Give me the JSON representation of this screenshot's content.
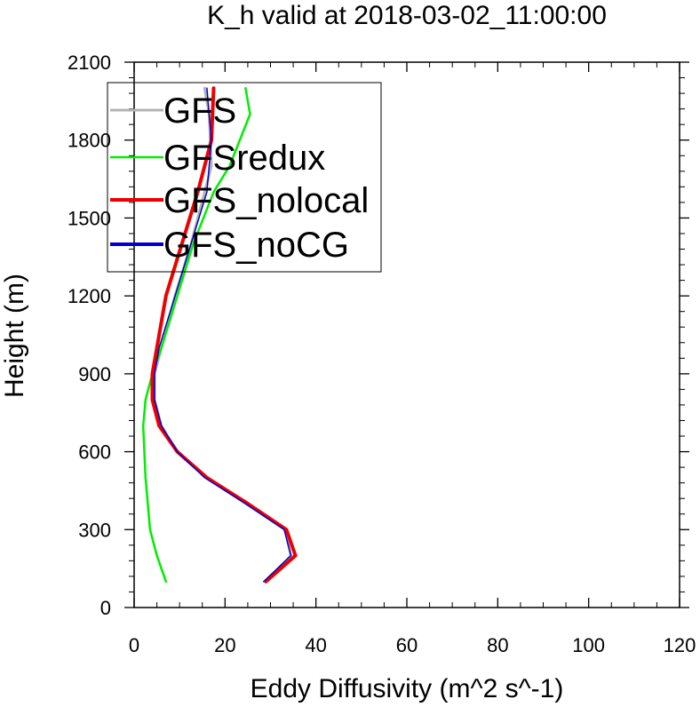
{
  "chart_data": {
    "type": "line",
    "title": "K_h valid at 2018-03-02_11:00:00",
    "xlabel": "Eddy Diffusivity (m^2 s^-1)",
    "ylabel": "Height (m)",
    "xlim": [
      0,
      120
    ],
    "ylim": [
      0,
      2100
    ],
    "xticks": [
      0,
      20,
      40,
      60,
      80,
      100,
      120
    ],
    "yticks": [
      0,
      300,
      600,
      900,
      1200,
      1500,
      1800,
      2100
    ],
    "xtick_labels": [
      "0",
      "20",
      "40",
      "60",
      "80",
      "100",
      "120"
    ],
    "ytick_labels": [
      "0",
      "300",
      "600",
      "900",
      "1200",
      "1500",
      "1800",
      "2100"
    ],
    "grid": false,
    "legend_position": "top-left",
    "series": [
      {
        "name": "GFS",
        "color": "#b4b4b4",
        "x": [
          29,
          34.5,
          33.2,
          24.5,
          16,
          9.5,
          6,
          4.5,
          4.5,
          6,
          9,
          12.5,
          17,
          16.5,
          15.5
        ],
        "y": [
          100,
          200,
          300,
          400,
          500,
          600,
          700,
          800,
          900,
          1000,
          1200,
          1400,
          1700,
          1900,
          2000
        ]
      },
      {
        "name": "GFSredux",
        "color": "#00ee00",
        "x": [
          7,
          5,
          3.5,
          2.5,
          2,
          2.5,
          4,
          6,
          9.5,
          13,
          17.5,
          21,
          25.5,
          24.5
        ],
        "y": [
          100,
          200,
          300,
          500,
          700,
          800,
          900,
          1000,
          1200,
          1400,
          1600,
          1700,
          1900,
          2000
        ]
      },
      {
        "name": "GFS_nolocal",
        "color": "#ee0000",
        "x": [
          29,
          35.5,
          33.5,
          25,
          16,
          9.5,
          5.5,
          4,
          4,
          5,
          7,
          10.5,
          14,
          17,
          17.5
        ],
        "y": [
          100,
          200,
          300,
          400,
          500,
          600,
          700,
          800,
          900,
          1000,
          1200,
          1400,
          1600,
          1800,
          2000
        ]
      },
      {
        "name": "GFS_noCG",
        "color": "#0000cc",
        "x": [
          28.5,
          34.5,
          33,
          24.5,
          15.5,
          9.5,
          6,
          4.5,
          4.5,
          5.5,
          9,
          12.5,
          16,
          17,
          16.5,
          16
        ],
        "y": [
          100,
          200,
          300,
          400,
          500,
          600,
          700,
          800,
          900,
          1000,
          1200,
          1400,
          1600,
          1800,
          1900,
          2000
        ]
      }
    ]
  }
}
